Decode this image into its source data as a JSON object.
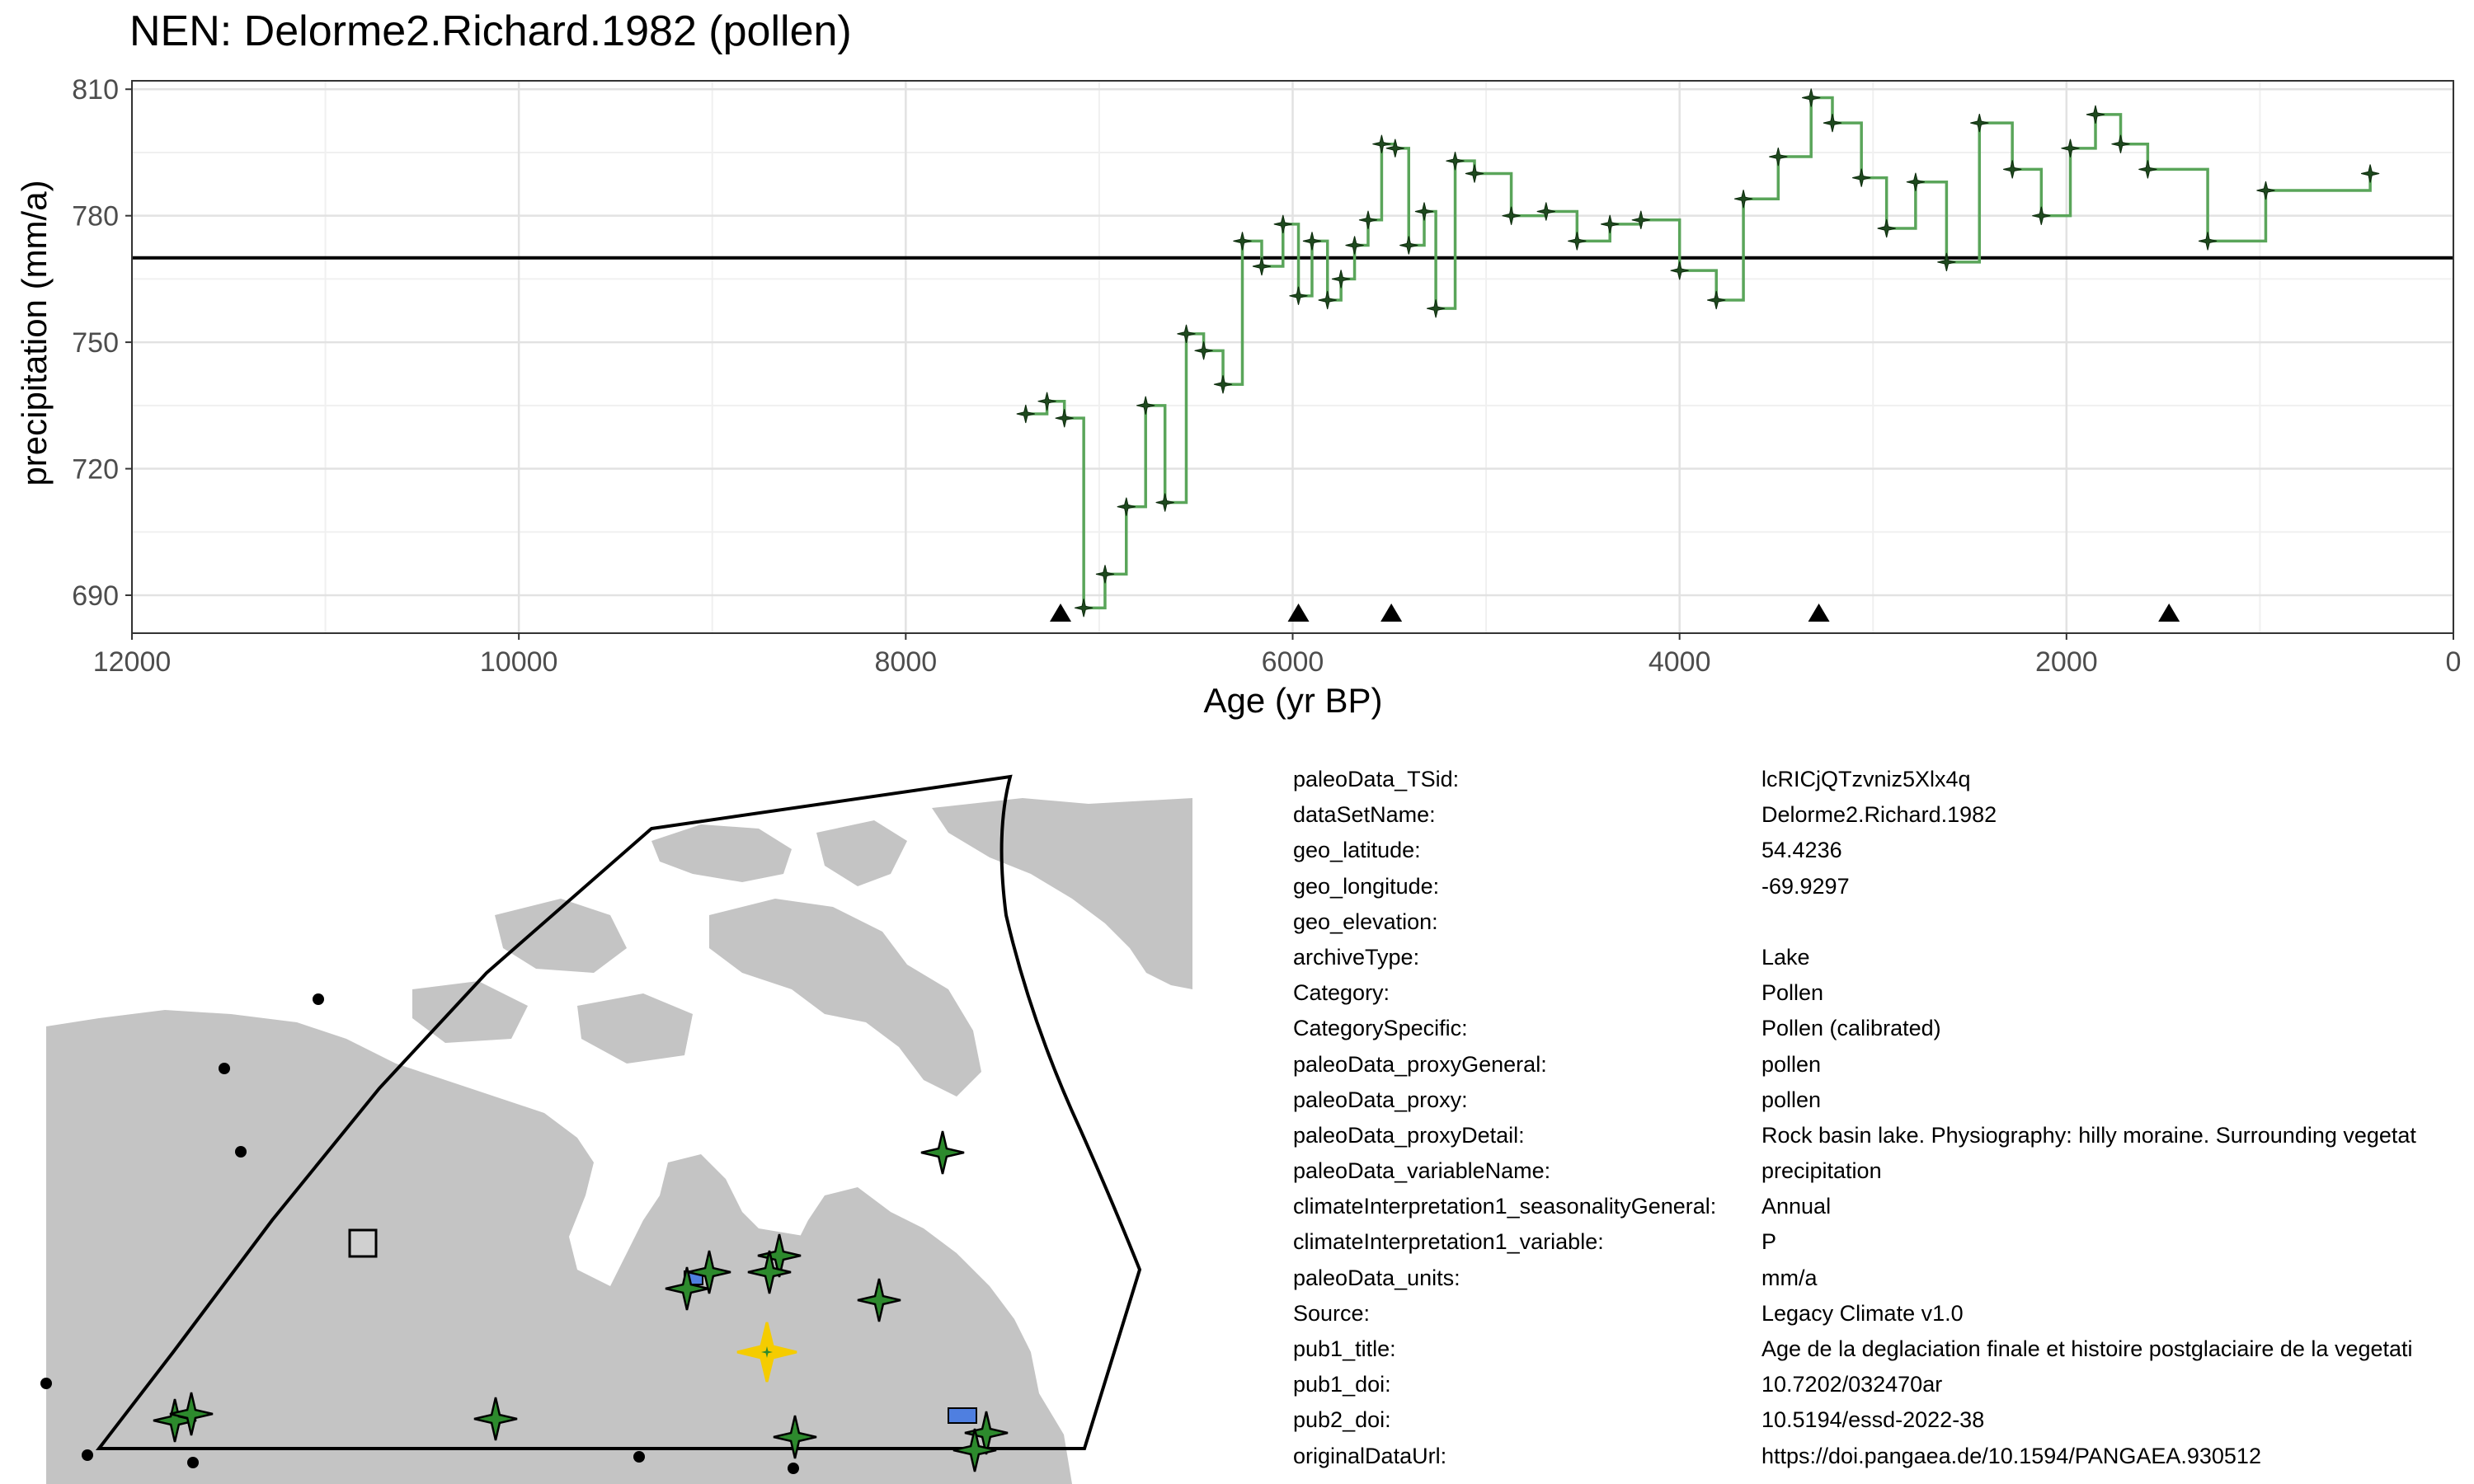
{
  "chart_data": {
    "type": "line",
    "title": "NEN: Delorme2.Richard.1982 (pollen)",
    "xlabel": "Age (yr BP)",
    "ylabel": "precipitation (mm/a)",
    "x_reversed": true,
    "xlim": [
      12000,
      0
    ],
    "ylim": [
      681,
      812
    ],
    "xticks": [
      12000,
      10000,
      8000,
      6000,
      4000,
      2000,
      0
    ],
    "yticks": [
      690,
      720,
      750,
      780,
      810
    ],
    "step_style": "step",
    "series": [
      {
        "color": "#5aa55a",
        "points": [
          [
            7380,
            733
          ],
          [
            7270,
            736
          ],
          [
            7180,
            732
          ],
          [
            7080,
            687
          ],
          [
            6970,
            695
          ],
          [
            6860,
            711
          ],
          [
            6760,
            735
          ],
          [
            6660,
            712
          ],
          [
            6550,
            752
          ],
          [
            6460,
            748
          ],
          [
            6360,
            740
          ],
          [
            6260,
            774
          ],
          [
            6160,
            768
          ],
          [
            6050,
            778
          ],
          [
            5970,
            761
          ],
          [
            5900,
            774
          ],
          [
            5820,
            760
          ],
          [
            5750,
            765
          ],
          [
            5680,
            773
          ],
          [
            5610,
            779
          ],
          [
            5540,
            797
          ],
          [
            5470,
            796
          ],
          [
            5400,
            773
          ],
          [
            5320,
            781
          ],
          [
            5260,
            758
          ],
          [
            5160,
            793
          ],
          [
            5060,
            790
          ],
          [
            4870,
            780
          ],
          [
            4690,
            781
          ],
          [
            4530,
            774
          ],
          [
            4360,
            778
          ],
          [
            4200,
            779
          ],
          [
            4000,
            767
          ],
          [
            3810,
            760
          ],
          [
            3670,
            784
          ],
          [
            3490,
            794
          ],
          [
            3320,
            808
          ],
          [
            3210,
            802
          ],
          [
            3060,
            789
          ],
          [
            2930,
            777
          ],
          [
            2780,
            788
          ],
          [
            2620,
            769
          ],
          [
            2450,
            802
          ],
          [
            2280,
            791
          ],
          [
            2130,
            780
          ],
          [
            1980,
            796
          ],
          [
            1850,
            804
          ],
          [
            1720,
            797
          ],
          [
            1580,
            791
          ],
          [
            1270,
            774
          ],
          [
            970,
            786
          ],
          [
            430,
            790
          ]
        ]
      }
    ],
    "reference_line": 770,
    "marker_ages": [
      7200,
      5970,
      5490,
      3280,
      1470
    ]
  },
  "map": {
    "land_color": "#c4c4c4",
    "polygon_color": "#000000",
    "site_star_color": "#2d8a2d",
    "highlight_star_color": "#f5cc00",
    "rect_color": "#4f7fe0"
  },
  "info": [
    {
      "key": "paleoData_TSid:",
      "value": "lcRICjQTzvniz5Xlx4q"
    },
    {
      "key": "dataSetName:",
      "value": "Delorme2.Richard.1982"
    },
    {
      "key": "geo_latitude:",
      "value": "54.4236"
    },
    {
      "key": "geo_longitude:",
      "value": "-69.9297"
    },
    {
      "key": "geo_elevation:",
      "value": ""
    },
    {
      "key": "archiveType:",
      "value": "Lake"
    },
    {
      "key": "Category:",
      "value": "Pollen"
    },
    {
      "key": "CategorySpecific:",
      "value": "Pollen (calibrated)"
    },
    {
      "key": "paleoData_proxyGeneral:",
      "value": "pollen"
    },
    {
      "key": "paleoData_proxy:",
      "value": "pollen"
    },
    {
      "key": "paleoData_proxyDetail:",
      "value": "Rock basin lake. Physiography: hilly moraine. Surrounding vegetat"
    },
    {
      "key": "paleoData_variableName:",
      "value": "precipitation"
    },
    {
      "key": "climateInterpretation1_seasonalityGeneral:",
      "value": "Annual"
    },
    {
      "key": "climateInterpretation1_variable:",
      "value": "P"
    },
    {
      "key": "paleoData_units:",
      "value": "mm/a"
    },
    {
      "key": "Source:",
      "value": "Legacy Climate v1.0"
    },
    {
      "key": "pub1_title:",
      "value": "Age de la deglaciation finale et histoire postglaciaire de la vegetati"
    },
    {
      "key": "pub1_doi:",
      "value": "10.7202/032470ar"
    },
    {
      "key": "pub2_doi:",
      "value": "10.5194/essd-2022-38"
    },
    {
      "key": "originalDataUrl:",
      "value": "https://doi.pangaea.de/10.1594/PANGAEA.930512"
    }
  ]
}
